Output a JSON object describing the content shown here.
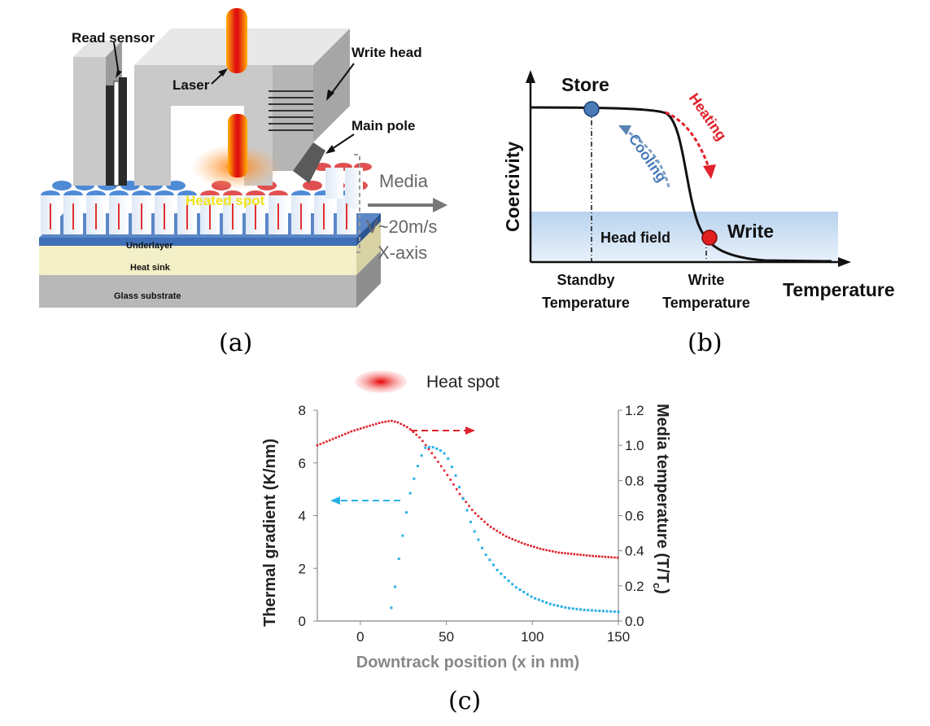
{
  "panel_a": {
    "read_sensor": "Read sensor",
    "laser": "Laser",
    "write_head": "Write head",
    "main_pole": "Main pole",
    "heated_spot": "Heated spot",
    "underlayer": "Underlayer",
    "heat_sink": "Heat sink",
    "glass_substrate": "Glass substrate",
    "media": "Media",
    "velocity": "V~20m/s",
    "axis": "X-axis"
  },
  "panel_b": {
    "store": "Store",
    "write": "Write",
    "heating": "Heating",
    "cooling": "Cooling",
    "head_field": "Head field",
    "y_label": "Coercivity",
    "x_label": "Temperature",
    "standby_line1": "Standby",
    "standby_line2": "Temperature",
    "write_line1": "Write",
    "write_line2": "Temperature"
  },
  "panel_c": {
    "legend": "Heat spot",
    "x_label": "Downtrack position (x in nm)",
    "y_left_label": "Thermal gradient (K/nm)",
    "y_right_label_main": "Media temperature (T/T",
    "y_right_label_sub": "c",
    "y_right_label_end": ")"
  },
  "chart_data": {
    "type": "scatter",
    "xlabel": "Downtrack position (x in nm)",
    "ylabel": "Thermal gradient (K/nm)",
    "y2label": "Media temperature (T/Tc)",
    "xlim": [
      -25,
      150
    ],
    "ylim": [
      0,
      8
    ],
    "y2lim": [
      0,
      1.2
    ],
    "x_ticks": [
      0,
      50,
      100,
      150
    ],
    "y_ticks": [
      0,
      2,
      4,
      6,
      8
    ],
    "y2_ticks": [
      0.0,
      0.2,
      0.4,
      0.6,
      0.8,
      1.0,
      1.2
    ],
    "grid": false,
    "series": [
      {
        "axis": "right",
        "color": "#e0202a",
        "x": [
          -25,
          -15,
          -5,
          5,
          12,
          18,
          22,
          28,
          35,
          42,
          50,
          58,
          66,
          75,
          85,
          95,
          105,
          115,
          125,
          135,
          150
        ],
        "values": [
          1.0,
          1.04,
          1.08,
          1.11,
          1.13,
          1.14,
          1.13,
          1.1,
          1.04,
          0.95,
          0.84,
          0.72,
          0.62,
          0.54,
          0.48,
          0.44,
          0.41,
          0.39,
          0.38,
          0.37,
          0.36
        ]
      },
      {
        "axis": "left",
        "color": "#2ab0e8",
        "x": [
          18,
          20,
          22,
          25,
          28,
          32,
          35,
          38,
          42,
          46,
          50,
          55,
          60,
          65,
          72,
          80,
          90,
          100,
          110,
          120,
          130,
          140,
          150
        ],
        "values": [
          0.5,
          1.2,
          2.2,
          3.4,
          4.6,
          5.6,
          6.2,
          6.6,
          6.6,
          6.5,
          6.3,
          5.6,
          4.6,
          3.6,
          2.6,
          1.9,
          1.3,
          0.9,
          0.65,
          0.5,
          0.42,
          0.38,
          0.35
        ]
      }
    ]
  },
  "captions": {
    "a": "(a)",
    "b": "(b)",
    "c": "(c)"
  }
}
